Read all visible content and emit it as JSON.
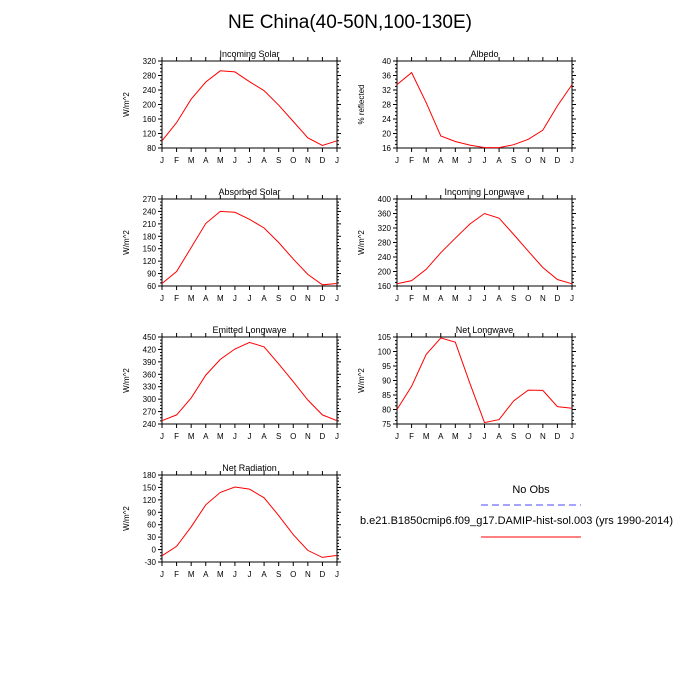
{
  "figure": {
    "title": "NE China(40-50N,100-130E)",
    "months": [
      "J",
      "F",
      "M",
      "A",
      "M",
      "J",
      "J",
      "A",
      "S",
      "O",
      "N",
      "D",
      "J"
    ],
    "line_color": "#ff0000",
    "obs_color": "#4a4aff"
  },
  "legend": {
    "obs_label": "No Obs",
    "model_label": "b.e21.B1850cmip6.f09_g17.DAMIP-hist-sol.003 (yrs 1990-2014)"
  },
  "chart_data": [
    {
      "type": "line",
      "title": "Incoming Solar",
      "ylabel": "W/m^2",
      "ylim": [
        80,
        320
      ],
      "yticks": [
        80,
        120,
        160,
        200,
        240,
        280,
        320
      ],
      "x": [
        "J",
        "F",
        "M",
        "A",
        "M",
        "J",
        "J",
        "A",
        "S",
        "O",
        "N",
        "D",
        "J"
      ],
      "series": [
        {
          "values": [
            100,
            150,
            215,
            262,
            293,
            290,
            263,
            238,
            198,
            153,
            108,
            87,
            100
          ]
        }
      ]
    },
    {
      "type": "line",
      "title": "Albedo",
      "ylabel": "% reflected",
      "ylim": [
        16,
        40
      ],
      "yticks": [
        16,
        20,
        24,
        28,
        32,
        36,
        40
      ],
      "x": [
        "J",
        "F",
        "M",
        "A",
        "M",
        "J",
        "J",
        "A",
        "S",
        "O",
        "N",
        "D",
        "J"
      ],
      "series": [
        {
          "values": [
            33.5,
            36.8,
            28.5,
            19.3,
            17.8,
            16.8,
            16.1,
            16.1,
            16.9,
            18.4,
            20.9,
            27.6,
            33.5
          ]
        }
      ]
    },
    {
      "type": "line",
      "title": "Absorbed Solar",
      "ylabel": "W/m^2",
      "ylim": [
        60,
        270
      ],
      "yticks": [
        60,
        90,
        120,
        150,
        180,
        210,
        240,
        270
      ],
      "x": [
        "J",
        "F",
        "M",
        "A",
        "M",
        "J",
        "J",
        "A",
        "S",
        "O",
        "N",
        "D",
        "J"
      ],
      "series": [
        {
          "values": [
            66,
            95,
            153,
            211,
            240,
            238,
            221,
            200,
            165,
            125,
            88,
            63,
            66
          ]
        }
      ]
    },
    {
      "type": "line",
      "title": "Incoming Longwave",
      "ylabel": "W/m^2",
      "ylim": [
        160,
        400
      ],
      "yticks": [
        160,
        200,
        240,
        280,
        320,
        360,
        400
      ],
      "x": [
        "J",
        "F",
        "M",
        "A",
        "M",
        "J",
        "J",
        "A",
        "S",
        "O",
        "N",
        "D",
        "J"
      ],
      "series": [
        {
          "values": [
            166,
            175,
            206,
            252,
            292,
            331,
            360,
            347,
            302,
            256,
            211,
            178,
            166
          ]
        }
      ]
    },
    {
      "type": "line",
      "title": "Emitted Longwave",
      "ylabel": "W/m^2",
      "ylim": [
        240,
        450
      ],
      "yticks": [
        240,
        270,
        300,
        330,
        360,
        390,
        420,
        450
      ],
      "x": [
        "J",
        "F",
        "M",
        "A",
        "M",
        "J",
        "J",
        "A",
        "S",
        "O",
        "N",
        "D",
        "J"
      ],
      "series": [
        {
          "values": [
            248,
            262,
            303,
            358,
            396,
            421,
            437,
            426,
            385,
            342,
            298,
            262,
            248
          ]
        }
      ]
    },
    {
      "type": "line",
      "title": "Net Longwave",
      "ylabel": "W/m^2",
      "ylim": [
        75,
        105
      ],
      "yticks": [
        75,
        80,
        85,
        90,
        95,
        100,
        105
      ],
      "x": [
        "J",
        "F",
        "M",
        "A",
        "M",
        "J",
        "J",
        "A",
        "S",
        "O",
        "N",
        "D",
        "J"
      ],
      "series": [
        {
          "values": [
            80,
            88,
            99,
            104.7,
            103.2,
            89,
            75.5,
            76.5,
            83,
            86.7,
            86.6,
            81,
            80.4
          ]
        }
      ]
    },
    {
      "type": "line",
      "title": "Net Radiation",
      "ylabel": "W/m^2",
      "ylim": [
        -30,
        180
      ],
      "yticks": [
        -30,
        0,
        30,
        60,
        90,
        120,
        150,
        180
      ],
      "x": [
        "J",
        "F",
        "M",
        "A",
        "M",
        "J",
        "J",
        "A",
        "S",
        "O",
        "N",
        "D",
        "J"
      ],
      "series": [
        {
          "values": [
            -15,
            8,
            55,
            108,
            138,
            151,
            146,
            125,
            82,
            36,
            -2,
            -19,
            -14
          ]
        }
      ]
    }
  ]
}
